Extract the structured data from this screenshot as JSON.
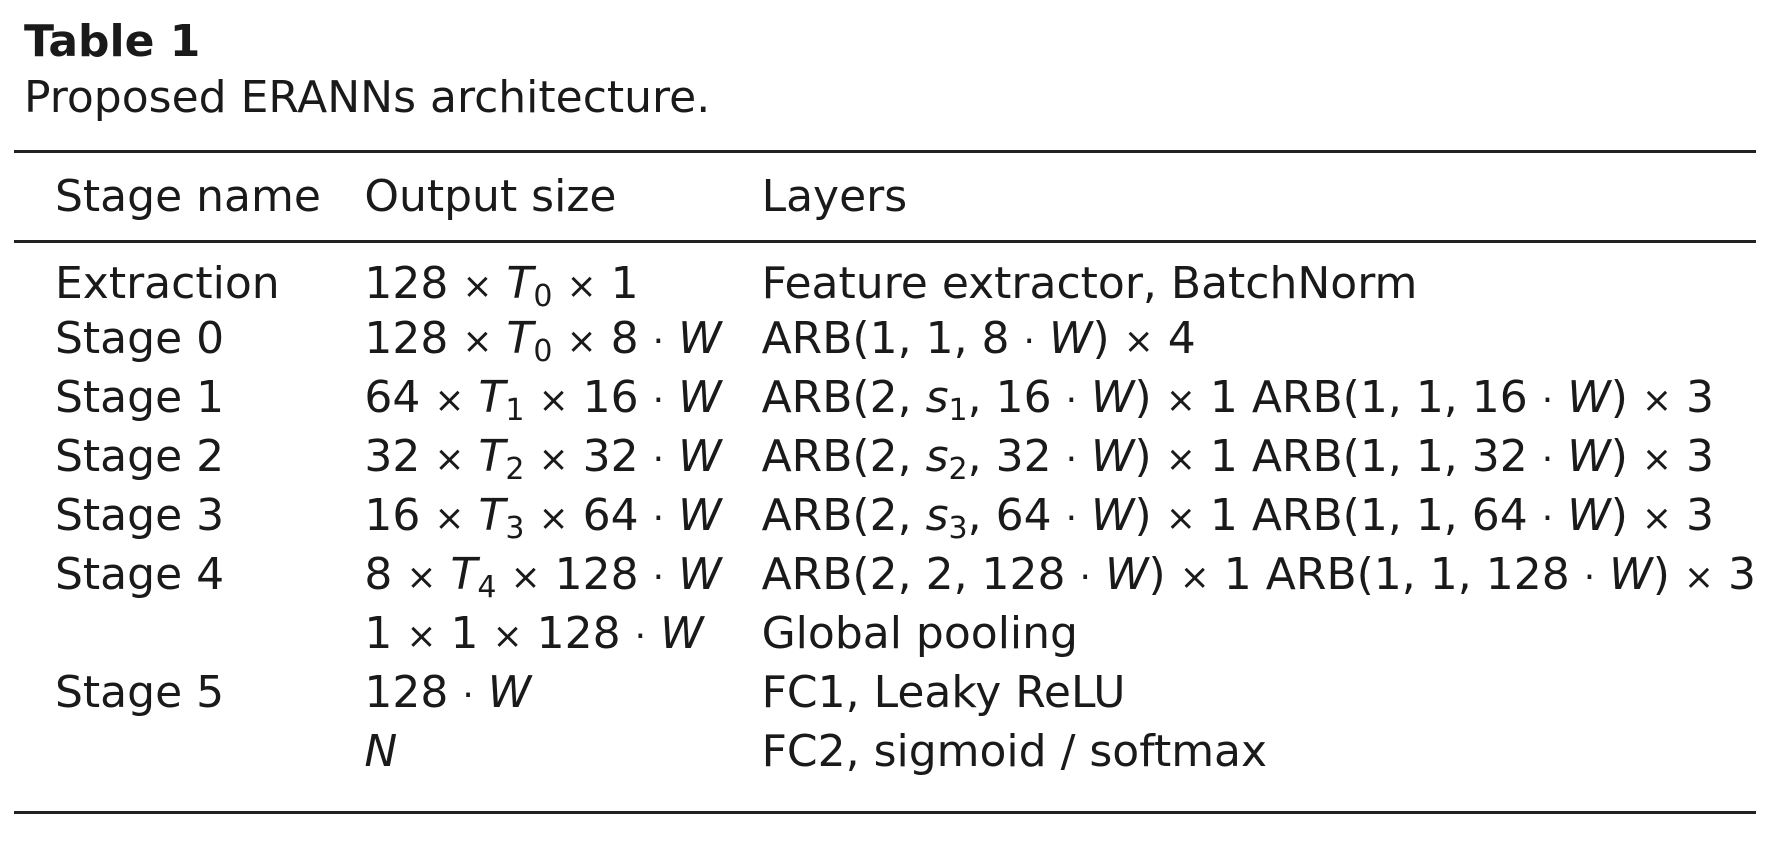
{
  "caption": {
    "title": "Table 1",
    "subtitle": "Proposed ERANNs architecture."
  },
  "table": {
    "headers": [
      "Stage name",
      "Output size",
      "Layers"
    ],
    "rows": [
      {
        "stage": "Extraction",
        "output": "128 × T0 × 1",
        "layers": "Feature extractor, BatchNorm"
      },
      {
        "stage": "Stage 0",
        "output": "128 × T0 × 8 · W",
        "layers": "ARB(1, 1, 8 · W) × 4"
      },
      {
        "stage": "Stage 1",
        "output": "64 × T1 × 16 · W",
        "layers": "ARB(2, s1, 16 · W) × 1 ARB(1, 1, 16 · W) × 3"
      },
      {
        "stage": "Stage 2",
        "output": "32 × T2 × 32 · W",
        "layers": "ARB(2, s2, 32 · W) × 1 ARB(1, 1, 32 · W) × 3"
      },
      {
        "stage": "Stage 3",
        "output": "16 × T3 × 64 · W",
        "layers": "ARB(2, s3, 64 · W) × 1 ARB(1, 1, 64 · W) × 3"
      },
      {
        "stage": "Stage 4",
        "output": "8 × T4 × 128 · W",
        "layers": "ARB(2, 2, 128 · W) × 1 ARB(1, 1, 128 · W) × 3"
      },
      {
        "stage": "",
        "output": "1 × 1 × 128 · W",
        "layers": "Global pooling"
      },
      {
        "stage": "Stage 5",
        "output": "128 · W",
        "layers": "FC1, Leaky ReLU"
      },
      {
        "stage": "",
        "output": "N",
        "layers": "FC2, sigmoid / softmax"
      }
    ]
  }
}
